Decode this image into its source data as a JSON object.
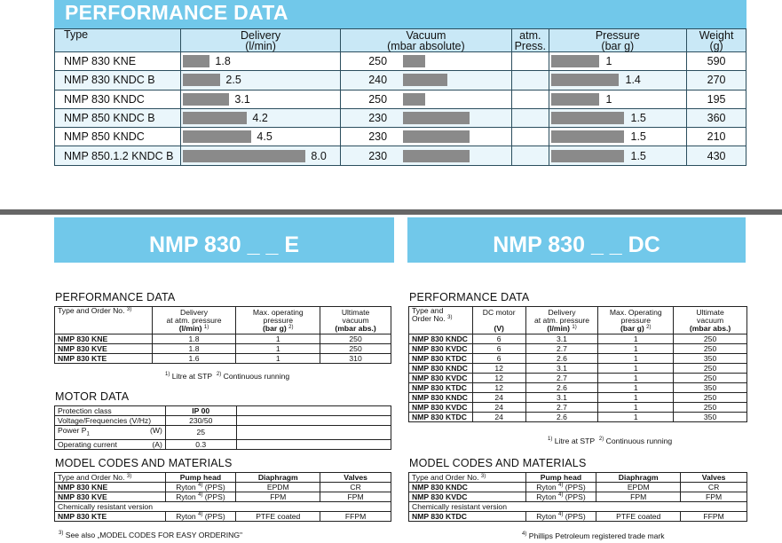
{
  "top": {
    "title": "PERFORMANCE DATA",
    "headers": {
      "type": "Type",
      "delivery": [
        "Delivery",
        "(l/min)"
      ],
      "vacuum": [
        "Vacuum",
        "(mbar absolute)"
      ],
      "atm": [
        "atm.",
        "Press."
      ],
      "pressure": [
        "Pressure",
        "(bar g)"
      ],
      "weight": [
        "Weight",
        "(g)"
      ]
    },
    "rows": [
      {
        "type": "NMP 830 KNE",
        "delivery": "1.8",
        "vacuum": "250",
        "pressure": "1",
        "weight": "590"
      },
      {
        "type": "NMP 830 KNDC B",
        "delivery": "2.5",
        "vacuum": "240",
        "pressure": "1.4",
        "weight": "270"
      },
      {
        "type": "NMP 830 KNDC",
        "delivery": "3.1",
        "vacuum": "250",
        "pressure": "1",
        "weight": "195"
      },
      {
        "type": "NMP 850 KNDC B",
        "delivery": "4.2",
        "vacuum": "230",
        "pressure": "1.5",
        "weight": "360"
      },
      {
        "type": "NMP 850 KNDC",
        "delivery": "4.5",
        "vacuum": "230",
        "pressure": "1.5",
        "weight": "210"
      },
      {
        "type": "NMP 850.1.2 KNDC B",
        "delivery": "8.0",
        "vacuum": "230",
        "pressure": "1.5",
        "weight": "430"
      }
    ]
  },
  "left": {
    "model_title": "NMP 830 _ _ E",
    "perf_title": "PERFORMANCE DATA",
    "perf_headers": {
      "type": "Type and Order No.",
      "type_sup": "3)",
      "delivery": [
        "Delivery",
        "at atm. pressure",
        "(l/min)"
      ],
      "delivery_sup": "1)",
      "pressure": [
        "Max. operating",
        "pressure",
        "(bar g)"
      ],
      "pressure_sup": "2)",
      "vacuum": [
        "Ultimate",
        "vacuum",
        "(mbar abs.)"
      ]
    },
    "perf_rows": [
      {
        "type": "NMP 830 KNE",
        "delivery": "1.8",
        "pressure": "1",
        "vacuum": "250"
      },
      {
        "type": "NMP 830 KVE",
        "delivery": "1.8",
        "pressure": "1",
        "vacuum": "250"
      },
      {
        "type": "NMP 830 KTE",
        "delivery": "1.6",
        "pressure": "1",
        "vacuum": "310"
      }
    ],
    "footnote_1": "Litre at STP",
    "footnote_1_sup": "1)",
    "footnote_2": "Continuous running",
    "footnote_2_sup": "2)",
    "motor_title": "MOTOR DATA",
    "motor_rows": [
      {
        "label": "Protection class",
        "unit": "",
        "value": "IP 00"
      },
      {
        "label": "Voltage/Frequencies (V/Hz)",
        "unit": "",
        "value": "230/50"
      },
      {
        "label": "Power P",
        "sub": "1",
        "unit": "(W)",
        "value": "25"
      },
      {
        "label": "Operating current",
        "unit": "(A)",
        "value": "0.3"
      }
    ],
    "mat_title": "MODEL CODES AND MATERIALS",
    "mat_headers": {
      "type": "Type and Order No.",
      "type_sup": "3)",
      "head": "Pump head",
      "diaphragm": "Diaphragm",
      "valves": "Valves"
    },
    "mat_rows": [
      {
        "type": "NMP 830 KNE",
        "head": "Ryton",
        "head_sup": "4)",
        "head_suffix": "(PPS)",
        "diaphragm": "EPDM",
        "valves": "CR"
      },
      {
        "type": "NMP 830 KVE",
        "head": "Ryton",
        "head_sup": "4)",
        "head_suffix": "(PPS)",
        "diaphragm": "FPM",
        "valves": "FPM"
      }
    ],
    "chem_label": "Chemically resistant version",
    "chem_row": {
      "type": "NMP 830 KTE",
      "head": "Ryton",
      "head_sup": "4)",
      "head_suffix": "(PPS)",
      "diaphragm": "PTFE coated",
      "valves": "FFPM"
    },
    "footnote_3_sup": "3)",
    "footnote_3": "See also „MODEL CODES FOR EASY ORDERING\""
  },
  "right": {
    "model_title": "NMP 830 _ _ DC",
    "perf_title": "PERFORMANCE DATA",
    "perf_headers": {
      "type": [
        "Type and",
        "Order No."
      ],
      "type_sup": "3)",
      "dc": [
        "DC motor",
        "",
        "(V)"
      ],
      "delivery": [
        "Delivery",
        "at atm. pressure",
        "(l/min)"
      ],
      "delivery_sup": "1)",
      "pressure": [
        "Max. Operating",
        "pressure",
        "(bar g)"
      ],
      "pressure_sup": "2)",
      "vacuum": [
        "Ultimate",
        "vacuum",
        "(mbar abs.)"
      ]
    },
    "perf_rows": [
      {
        "type": "NMP 830 KNDC",
        "dc": "6",
        "delivery": "3.1",
        "pressure": "1",
        "vacuum": "250"
      },
      {
        "type": "NMP 830 KVDC",
        "dc": "6",
        "delivery": "2.7",
        "pressure": "1",
        "vacuum": "250"
      },
      {
        "type": "NMP 830 KTDC",
        "dc": "6",
        "delivery": "2.6",
        "pressure": "1",
        "vacuum": "350"
      },
      {
        "type": "NMP 830 KNDC",
        "dc": "12",
        "delivery": "3.1",
        "pressure": "1",
        "vacuum": "250"
      },
      {
        "type": "NMP 830 KVDC",
        "dc": "12",
        "delivery": "2.7",
        "pressure": "1",
        "vacuum": "250"
      },
      {
        "type": "NMP 830 KTDC",
        "dc": "12",
        "delivery": "2.6",
        "pressure": "1",
        "vacuum": "350"
      },
      {
        "type": "NMP 830 KNDC",
        "dc": "24",
        "delivery": "3.1",
        "pressure": "1",
        "vacuum": "250"
      },
      {
        "type": "NMP 830 KVDC",
        "dc": "24",
        "delivery": "2.7",
        "pressure": "1",
        "vacuum": "250"
      },
      {
        "type": "NMP 830 KTDC",
        "dc": "24",
        "delivery": "2.6",
        "pressure": "1",
        "vacuum": "350"
      }
    ],
    "footnote_1": "Litre at STP",
    "footnote_1_sup": "1)",
    "footnote_2": "Continuous running",
    "footnote_2_sup": "2)",
    "mat_title": "MODEL CODES AND MATERIALS",
    "mat_headers": {
      "type": "Type and Order No.",
      "type_sup": "3)",
      "head": "Pump head",
      "diaphragm": "Diaphragm",
      "valves": "Valves"
    },
    "mat_rows": [
      {
        "type": "NMP 830 KNDC",
        "head": "Ryton",
        "head_sup": "4)",
        "head_suffix": "(PPS)",
        "diaphragm": "EPDM",
        "valves": "CR"
      },
      {
        "type": "NMP 830 KVDC",
        "head": "Ryton",
        "head_sup": "4)",
        "head_suffix": "(PPS)",
        "diaphragm": "FPM",
        "valves": "FPM"
      }
    ],
    "chem_label": "Chemically resistant version",
    "chem_row": {
      "type": "NMP 830 KTDC",
      "head": "Ryton",
      "head_sup": "4)",
      "head_suffix": "(PPS)",
      "diaphragm": "PTFE coated",
      "valves": "FFPM"
    },
    "footnote_4_sup": "4)",
    "footnote_4": "Phillips Petroleum registered trade mark"
  },
  "colors": {
    "accent": "#71c8ea",
    "header_bg": "#c9e8f6",
    "bar": "#8a8a8a",
    "divider": "#666666"
  }
}
